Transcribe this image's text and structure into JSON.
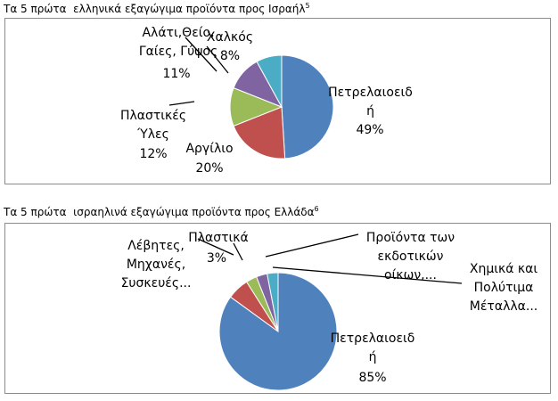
{
  "chart_data": [
    {
      "type": "pie",
      "title": "Τα 5 πρώτα  ελληνικά εξαγώγιμα προϊόντα προς Ισραήλ",
      "title_superscript": "5",
      "categories": [
        "Πετρελαιοειδή",
        "Αργίλιο",
        "Πλαστικές Ύλες",
        "Αλάτι,Θείο, Γαίες, Γύψος",
        "Χαλκός"
      ],
      "values": [
        49,
        20,
        12,
        11,
        8
      ],
      "value_labels": [
        "49%",
        "20%",
        "12%",
        "11%",
        "8%"
      ],
      "colors": [
        "#4f81bd",
        "#c0504d",
        "#9bbb59",
        "#8064a2",
        "#4bacc6"
      ]
    },
    {
      "type": "pie",
      "title": "Τα 5 πρώτα  ισραηλινά εξαγώγιμα προϊόντα προς Ελλάδα",
      "title_superscript": "6",
      "categories": [
        "Πετρελαιοειδή",
        "Λέβητες, Μηχανές, Συσκευές...",
        "Πλαστικά",
        "Προϊόντα των εκδοτικών οίκων,...",
        "Χημικά και Πολύτιμα Μέταλλα..."
      ],
      "values": [
        85,
        6,
        3,
        3,
        3
      ],
      "value_labels": [
        "85%",
        null,
        "3%",
        null,
        null
      ],
      "colors": [
        "#4f81bd",
        "#c0504d",
        "#9bbb59",
        "#8064a2",
        "#4bacc6"
      ]
    }
  ]
}
